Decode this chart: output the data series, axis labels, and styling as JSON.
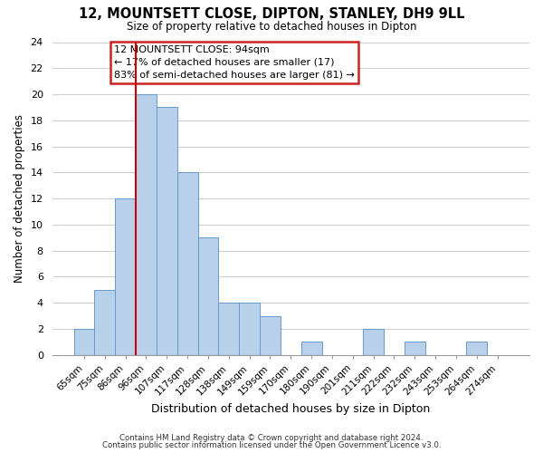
{
  "title_main": "12, MOUNTSETT CLOSE, DIPTON, STANLEY, DH9 9LL",
  "subtitle": "Size of property relative to detached houses in Dipton",
  "xlabel": "Distribution of detached houses by size in Dipton",
  "ylabel": "Number of detached properties",
  "bin_labels": [
    "65sqm",
    "75sqm",
    "86sqm",
    "96sqm",
    "107sqm",
    "117sqm",
    "128sqm",
    "138sqm",
    "149sqm",
    "159sqm",
    "170sqm",
    "180sqm",
    "190sqm",
    "201sqm",
    "211sqm",
    "222sqm",
    "232sqm",
    "243sqm",
    "253sqm",
    "264sqm",
    "274sqm"
  ],
  "bar_heights": [
    2,
    5,
    12,
    20,
    19,
    14,
    9,
    4,
    4,
    3,
    0,
    1,
    0,
    0,
    2,
    0,
    1,
    0,
    0,
    1,
    0
  ],
  "bar_color": "#b8d0ea",
  "bar_edge_color": "#6699cc",
  "vline_color": "#cc0000",
  "vline_position": 2.5,
  "ylim": [
    0,
    24
  ],
  "yticks": [
    0,
    2,
    4,
    6,
    8,
    10,
    12,
    14,
    16,
    18,
    20,
    22,
    24
  ],
  "annotation_line1": "12 MOUNTSETT CLOSE: 94sqm",
  "annotation_line2": "← 17% of detached houses are smaller (17)",
  "annotation_line3": "83% of semi-detached houses are larger (81) →",
  "footer1": "Contains HM Land Registry data © Crown copyright and database right 2024.",
  "footer2": "Contains public sector information licensed under the Open Government Licence v3.0.",
  "grid_color": "#cccccc",
  "annotation_box_color": "#cc2222"
}
